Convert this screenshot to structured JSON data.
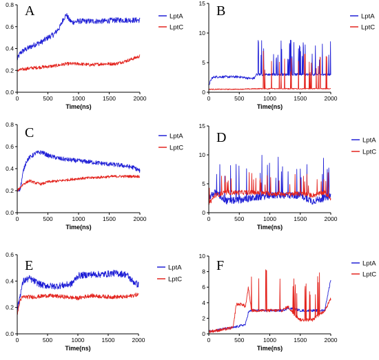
{
  "figure": {
    "colors": {
      "LptA": "#1f1fd6",
      "LptC": "#e3231d"
    }
  },
  "chart_data": [
    {
      "panel": "A",
      "type": "line",
      "xlabel": "Time(ns)",
      "ylabel": "",
      "xlim": [
        0,
        2000
      ],
      "ylim": [
        0,
        0.8
      ],
      "xticks": [
        0,
        500,
        1000,
        1500,
        2000
      ],
      "yticks": [
        0.0,
        0.2,
        0.4,
        0.6,
        0.8
      ],
      "legend": "right",
      "series": [
        {
          "name": "LptA",
          "color": "#1f1fd6",
          "x": [
            0,
            50,
            100,
            200,
            300,
            400,
            500,
            600,
            700,
            750,
            800,
            850,
            900,
            1000,
            1200,
            1400,
            1600,
            1800,
            2000
          ],
          "y": [
            0.3,
            0.36,
            0.38,
            0.41,
            0.44,
            0.46,
            0.5,
            0.53,
            0.6,
            0.67,
            0.71,
            0.66,
            0.64,
            0.65,
            0.65,
            0.65,
            0.66,
            0.66,
            0.66
          ],
          "noise": 0.025
        },
        {
          "name": "LptC",
          "color": "#e3231d",
          "x": [
            0,
            100,
            200,
            400,
            600,
            800,
            1000,
            1200,
            1400,
            1600,
            1800,
            2000
          ],
          "y": [
            0.2,
            0.21,
            0.22,
            0.23,
            0.24,
            0.26,
            0.26,
            0.25,
            0.26,
            0.26,
            0.29,
            0.33
          ],
          "noise": 0.015
        }
      ]
    },
    {
      "panel": "B",
      "type": "line",
      "xlabel": "Time(ns)",
      "ylabel": "",
      "xlim": [
        0,
        2000
      ],
      "ylim": [
        0,
        15
      ],
      "xticks": [
        0,
        500,
        1000,
        1500,
        2000
      ],
      "yticks": [
        0,
        5,
        10,
        15
      ],
      "legend": "top-right",
      "series": [
        {
          "name": "LptA",
          "color": "#1f1fd6",
          "x": [
            0,
            50,
            100,
            300,
            500,
            700,
            750,
            780,
            800,
            1000,
            1200,
            1500,
            1800,
            2000
          ],
          "y": [
            1.2,
            2.4,
            2.6,
            2.6,
            2.6,
            2.3,
            2.4,
            3.0,
            3.0,
            3.0,
            3.0,
            3.0,
            3.0,
            3.0
          ],
          "noise": 0.2,
          "spikes": {
            "from": 780,
            "to": 2000,
            "max": 9,
            "rate": 0.12
          }
        },
        {
          "name": "LptC",
          "color": "#e3231d",
          "x": [
            0,
            100,
            500,
            800,
            900,
            1000,
            1500,
            2000
          ],
          "y": [
            0.5,
            0.5,
            0.5,
            0.6,
            0.6,
            0.6,
            0.6,
            0.6
          ],
          "noise": 0.08,
          "spikes": {
            "from": 880,
            "to": 2000,
            "max": 7,
            "rate": 0.1
          }
        }
      ]
    },
    {
      "panel": "C",
      "type": "line",
      "xlabel": "Time(ns)",
      "ylabel": "",
      "xlim": [
        0,
        2000
      ],
      "ylim": [
        0,
        0.8
      ],
      "xticks": [
        0,
        500,
        1000,
        1500,
        2000
      ],
      "yticks": [
        0.0,
        0.2,
        0.4,
        0.6,
        0.8
      ],
      "legend": "right",
      "series": [
        {
          "name": "LptA",
          "color": "#1f1fd6",
          "x": [
            0,
            50,
            100,
            150,
            200,
            300,
            400,
            500,
            700,
            1000,
            1200,
            1500,
            1700,
            1900,
            2000
          ],
          "y": [
            0.2,
            0.22,
            0.38,
            0.47,
            0.5,
            0.54,
            0.55,
            0.52,
            0.49,
            0.47,
            0.46,
            0.44,
            0.43,
            0.41,
            0.38
          ],
          "noise": 0.02
        },
        {
          "name": "LptC",
          "color": "#e3231d",
          "x": [
            0,
            100,
            200,
            300,
            400,
            500,
            700,
            1000,
            1300,
            1600,
            2000
          ],
          "y": [
            0.2,
            0.26,
            0.29,
            0.27,
            0.26,
            0.28,
            0.29,
            0.31,
            0.32,
            0.33,
            0.33
          ],
          "noise": 0.012
        }
      ]
    },
    {
      "panel": "D",
      "type": "line",
      "xlabel": "Time(ns)",
      "ylabel": "",
      "xlim": [
        0,
        2000
      ],
      "ylim": [
        0,
        15
      ],
      "xticks": [
        0,
        500,
        1000,
        1500,
        2000
      ],
      "yticks": [
        0,
        5,
        10,
        15
      ],
      "legend": "right",
      "series": [
        {
          "name": "LptA",
          "color": "#1f1fd6",
          "x": [
            0,
            100,
            300,
            500,
            700,
            1000,
            1300,
            1500,
            1700,
            1900,
            2000
          ],
          "y": [
            2.5,
            3.5,
            2.0,
            2.2,
            2.5,
            3.0,
            3.0,
            3.0,
            2.0,
            2.5,
            3.0
          ],
          "noise": 0.6,
          "spikes": {
            "from": 0,
            "to": 2000,
            "max": 10,
            "rate": 0.08
          }
        },
        {
          "name": "LptC",
          "color": "#e3231d",
          "x": [
            0,
            100,
            300,
            500,
            700,
            1000,
            1300,
            1500,
            1700,
            1900,
            2000
          ],
          "y": [
            1.5,
            3.0,
            3.5,
            3.5,
            3.5,
            3.3,
            3.2,
            3.3,
            3.0,
            3.5,
            2.5
          ],
          "noise": 0.4,
          "spikes": {
            "from": 0,
            "to": 2000,
            "max": 7,
            "rate": 0.05
          }
        }
      ]
    },
    {
      "panel": "E",
      "type": "line",
      "xlabel": "Time(ns)",
      "ylabel": "",
      "xlim": [
        0,
        2000
      ],
      "ylim": [
        0,
        0.6
      ],
      "xticks": [
        0,
        500,
        1000,
        1500,
        2000
      ],
      "yticks": [
        0.0,
        0.2,
        0.4,
        0.6
      ],
      "legend": "right",
      "series": [
        {
          "name": "LptA",
          "color": "#1f1fd6",
          "x": [
            0,
            50,
            100,
            200,
            400,
            600,
            800,
            900,
            1000,
            1200,
            1400,
            1600,
            1800,
            1900,
            2000
          ],
          "y": [
            0.18,
            0.3,
            0.4,
            0.42,
            0.37,
            0.36,
            0.37,
            0.38,
            0.44,
            0.45,
            0.45,
            0.46,
            0.45,
            0.4,
            0.37
          ],
          "noise": 0.025
        },
        {
          "name": "LptC",
          "color": "#e3231d",
          "x": [
            0,
            50,
            100,
            300,
            500,
            800,
            1000,
            1200,
            1500,
            1800,
            2000
          ],
          "y": [
            0.15,
            0.26,
            0.28,
            0.28,
            0.29,
            0.28,
            0.27,
            0.29,
            0.28,
            0.28,
            0.3
          ],
          "noise": 0.015
        }
      ]
    },
    {
      "panel": "F",
      "type": "line",
      "xlabel": "Time(ns)",
      "ylabel": "",
      "xlim": [
        0,
        2000
      ],
      "ylim": [
        0,
        10
      ],
      "xticks": [
        0,
        500,
        1000,
        1500,
        2000
      ],
      "yticks": [
        0,
        2,
        4,
        6,
        8,
        10
      ],
      "legend": "right",
      "series": [
        {
          "name": "LptA",
          "color": "#1f1fd6",
          "x": [
            0,
            200,
            400,
            500,
            600,
            650,
            700,
            1000,
            1200,
            1300,
            1400,
            1500,
            1700,
            1900,
            1950,
            2000
          ],
          "y": [
            0.3,
            0.6,
            0.8,
            1.0,
            1.2,
            2.8,
            3.0,
            3.0,
            3.0,
            3.3,
            3.2,
            3.0,
            3.0,
            3.0,
            5.0,
            7.0
          ],
          "noise": 0.15
        },
        {
          "name": "LptC",
          "color": "#e3231d",
          "x": [
            0,
            200,
            400,
            450,
            550,
            600,
            650,
            700,
            800,
            1000,
            1200,
            1300,
            1400,
            1500,
            1700,
            1900,
            2000
          ],
          "y": [
            0.3,
            0.5,
            0.8,
            3.8,
            3.8,
            3.5,
            6.0,
            3.0,
            3.0,
            3.0,
            3.0,
            3.5,
            2.5,
            1.8,
            1.8,
            3.0,
            4.5
          ],
          "noise": 0.2,
          "spikes": {
            "from": 600,
            "to": 1850,
            "max": 8.5,
            "rate": 0.07
          }
        }
      ]
    }
  ]
}
